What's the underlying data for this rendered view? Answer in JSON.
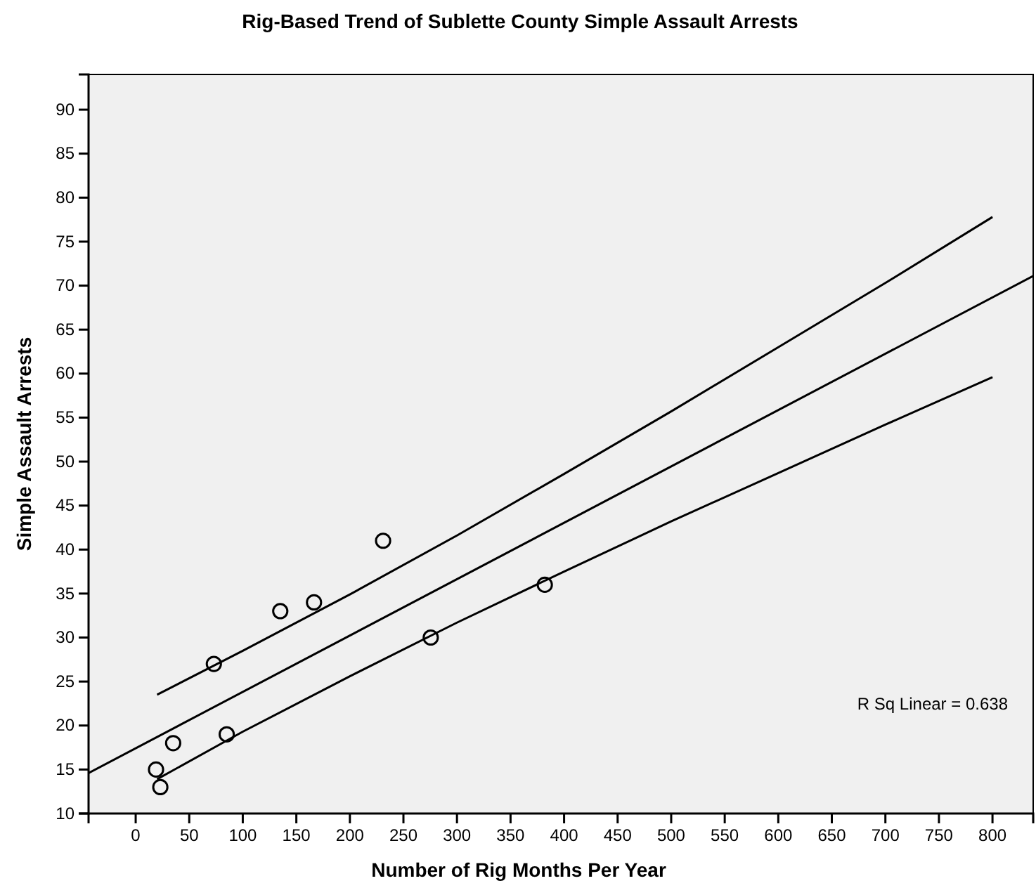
{
  "chart_data": {
    "type": "scatter",
    "title": "Rig-Based Trend of Sublette County Simple Assault Arrests",
    "xlabel": "Number of Rig Months Per Year",
    "ylabel": "Simple Assault Arrests",
    "annotations": [
      "R Sq Linear = 0.638"
    ],
    "xlim": [
      -44,
      838
    ],
    "ylim": [
      10,
      94
    ],
    "xticks": [
      0,
      50,
      100,
      150,
      200,
      250,
      300,
      350,
      400,
      450,
      500,
      550,
      600,
      650,
      700,
      750,
      800
    ],
    "yticks": [
      10,
      15,
      20,
      25,
      30,
      35,
      40,
      45,
      50,
      55,
      60,
      65,
      70,
      75,
      80,
      85,
      90
    ],
    "line_style": "solid",
    "series": [
      {
        "marker": "circle",
        "color": "#000000",
        "x": [
          19,
          23,
          35,
          73,
          85,
          135,
          166.5,
          231,
          275.5,
          382
        ],
        "values": [
          15,
          13,
          18,
          27,
          19,
          33,
          34,
          41,
          30,
          36
        ]
      },
      {
        "type": "line",
        "marker": "none",
        "color": "#000000",
        "x": [
          -44,
          838
        ],
        "values": [
          14.6,
          71.1
        ]
      },
      {
        "type": "line",
        "marker": "none",
        "color": "#000000",
        "x": [
          20,
          100,
          200,
          300,
          400,
          500,
          600,
          700,
          800
        ],
        "values": [
          23.5,
          28.5,
          34.9,
          41.6,
          48.6,
          55.7,
          63.0,
          70.3,
          77.8
        ]
      },
      {
        "type": "line",
        "marker": "none",
        "color": "#000000",
        "x": [
          20,
          100,
          200,
          300,
          400,
          500,
          600,
          700,
          800
        ],
        "values": [
          13.9,
          19.3,
          25.6,
          31.7,
          37.5,
          43.2,
          48.7,
          54.2,
          59.6
        ]
      }
    ]
  }
}
